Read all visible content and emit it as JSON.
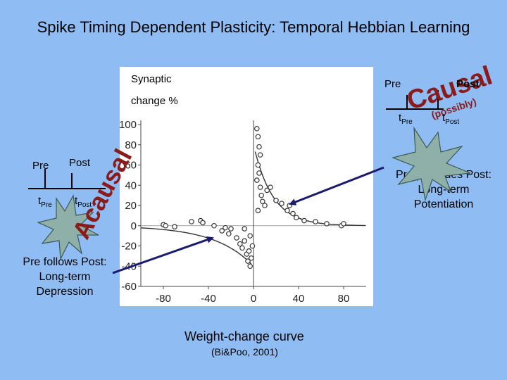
{
  "title": "Spike Timing Dependent Plasticity: Temporal Hebbian Learning",
  "ylabel_line1": "Synaptic",
  "ylabel_line2": "change %",
  "caption": "Weight-change curve",
  "citation": "(Bi&Poo, 2001)",
  "causal_word": "Causal",
  "possibly_word": "(possibly)",
  "acausal_word": "Acausal",
  "right_diagram": {
    "pre": "Pre",
    "post": "Post",
    "t_pre": "t",
    "t_pre_sub": "Pre",
    "t_post": "t",
    "t_post_sub": "Post"
  },
  "left_diagram": {
    "pre": "Pre",
    "post": "Post",
    "t_pre": "t",
    "t_pre_sub": "Pre",
    "t_post": "t",
    "t_post_sub": "Post"
  },
  "ltp_text": [
    "Pre precedes Post:",
    "Long-term",
    "Potentiation"
  ],
  "ltd_text": [
    "Pre follows Post:",
    "Long-term",
    "Depression"
  ],
  "colors": {
    "background": "#8fbcf3",
    "star_fill": "#8fb0a8",
    "arrow": "#1a1a70"
  },
  "chart_data": {
    "type": "scatter",
    "xlim": [
      -100,
      100
    ],
    "ylim": [
      -60,
      100
    ],
    "xticks": [
      -80,
      -40,
      0,
      40,
      80
    ],
    "yticks": [
      -60,
      -40,
      -20,
      0,
      20,
      40,
      60,
      80,
      100
    ],
    "grid": false,
    "points": [
      [
        -80,
        1
      ],
      [
        -78,
        0
      ],
      [
        -55,
        4
      ],
      [
        -47,
        5
      ],
      [
        -45,
        3
      ],
      [
        -25,
        -2
      ],
      [
        -22,
        -8
      ],
      [
        -20,
        -3
      ],
      [
        -15,
        -12
      ],
      [
        -12,
        -18
      ],
      [
        -10,
        -22
      ],
      [
        -8,
        -15
      ],
      [
        -6,
        -28
      ],
      [
        -5,
        -35
      ],
      [
        -4,
        -25
      ],
      [
        -3,
        -40
      ],
      [
        -2,
        -32
      ],
      [
        -1,
        -20
      ],
      [
        -3,
        -10
      ],
      [
        -8,
        -3
      ],
      [
        3,
        96
      ],
      [
        4,
        88
      ],
      [
        5,
        78
      ],
      [
        6,
        70
      ],
      [
        4,
        60
      ],
      [
        5,
        52
      ],
      [
        3,
        45
      ],
      [
        6,
        38
      ],
      [
        7,
        30
      ],
      [
        8,
        24
      ],
      [
        10,
        20
      ],
      [
        4,
        15
      ],
      [
        12,
        35
      ],
      [
        15,
        38
      ],
      [
        20,
        25
      ],
      [
        25,
        22
      ],
      [
        30,
        15
      ],
      [
        32,
        20
      ],
      [
        35,
        12
      ],
      [
        38,
        8
      ],
      [
        45,
        5
      ],
      [
        55,
        4
      ],
      [
        65,
        2
      ],
      [
        78,
        0
      ],
      [
        80,
        2
      ],
      [
        -70,
        -1
      ],
      [
        -35,
        0
      ],
      [
        -28,
        -5
      ]
    ],
    "fit_curves": [
      {
        "side": "ltp",
        "amplitude": 80,
        "tau": 17
      },
      {
        "side": "ltd",
        "amplitude": -40,
        "tau": 34
      }
    ]
  }
}
